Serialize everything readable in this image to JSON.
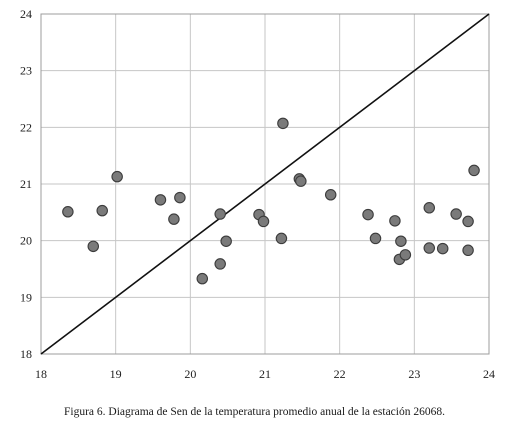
{
  "caption": "Figura 6. Diagrama de Sen de la temperatura promedio anual de la estación 26068.",
  "chart_data": {
    "type": "scatter",
    "title": "",
    "xlabel": "",
    "ylabel": "",
    "xlim": [
      18,
      24
    ],
    "ylim": [
      18,
      24
    ],
    "x_ticks": [
      "18",
      "19",
      "20",
      "21",
      "22",
      "23",
      "24"
    ],
    "y_ticks": [
      "18",
      "19",
      "20",
      "21",
      "22",
      "23",
      "24"
    ],
    "grid": true,
    "legend": "none",
    "reference_line": {
      "type": "1:1",
      "from": [
        18,
        18
      ],
      "to": [
        24,
        24
      ]
    },
    "series": [
      {
        "points": [
          [
            18.36,
            20.51
          ],
          [
            18.7,
            19.9
          ],
          [
            18.82,
            20.53
          ],
          [
            19.02,
            21.13
          ],
          [
            19.6,
            20.72
          ],
          [
            19.78,
            20.38
          ],
          [
            19.86,
            20.76
          ],
          [
            20.16,
            19.33
          ],
          [
            20.4,
            20.47
          ],
          [
            20.4,
            19.59
          ],
          [
            20.48,
            19.99
          ],
          [
            20.92,
            20.46
          ],
          [
            20.98,
            20.34
          ],
          [
            21.22,
            20.04
          ],
          [
            21.24,
            22.07
          ],
          [
            21.46,
            21.09
          ],
          [
            21.48,
            21.05
          ],
          [
            21.88,
            20.81
          ],
          [
            22.38,
            20.46
          ],
          [
            22.48,
            20.04
          ],
          [
            22.74,
            20.35
          ],
          [
            22.8,
            19.67
          ],
          [
            22.82,
            19.99
          ],
          [
            22.88,
            19.75
          ],
          [
            23.2,
            20.58
          ],
          [
            23.2,
            19.87
          ],
          [
            23.38,
            19.86
          ],
          [
            23.56,
            20.47
          ],
          [
            23.72,
            20.34
          ],
          [
            23.72,
            19.83
          ],
          [
            23.8,
            21.24
          ]
        ]
      }
    ],
    "colors": {
      "marker_fill": "#7a7a7a",
      "marker_stroke": "#3c3c3c",
      "grid": "#c6c6c6",
      "frame": "#9c9c9c",
      "line": "#111111"
    }
  }
}
